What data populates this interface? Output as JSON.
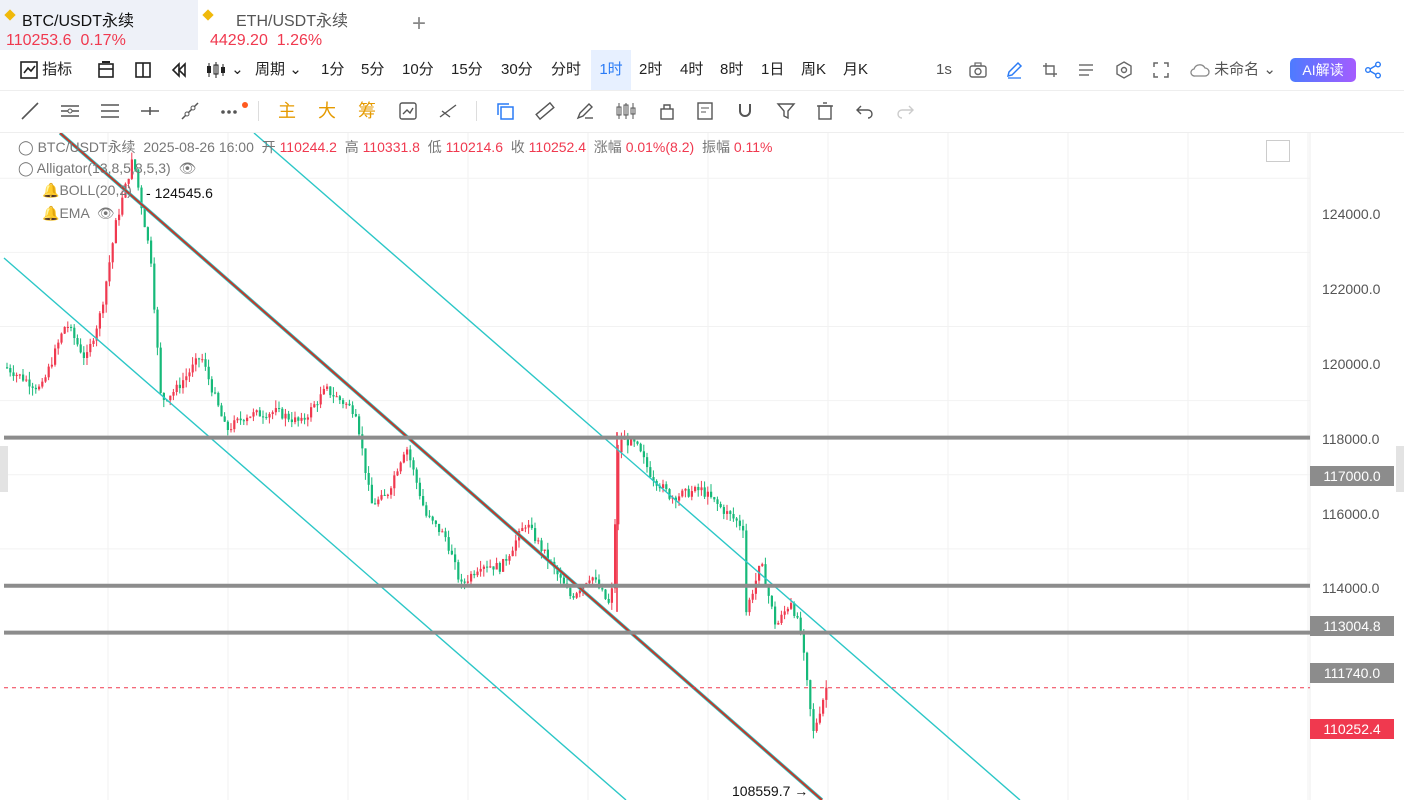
{
  "tabs": [
    {
      "name": "BTC/USDT永续",
      "price": "110253.6",
      "change": "0.17%"
    },
    {
      "name": "ETH/USDT永续",
      "price": "4429.20",
      "change": "1.26%"
    }
  ],
  "toolbar": {
    "indicators": "指标",
    "period": "周期",
    "intervals": [
      "1分",
      "5分",
      "10分",
      "15分",
      "30分",
      "分时",
      "1时",
      "2时",
      "4时",
      "8时",
      "1日",
      "周K",
      "月K"
    ],
    "selected_interval": "1时",
    "speed": "1s",
    "layout_name": "未命名",
    "ai_label": "AI解读"
  },
  "toolbar2": {
    "main": "主",
    "big": "大",
    "chip": "筹"
  },
  "legend": {
    "symbol": "BTC/USDT永续",
    "datetime": "2025-08-26 16:00",
    "open_label": "开",
    "open": "110244.2",
    "high_label": "高",
    "high": "110331.8",
    "low_label": "低",
    "low": "110214.6",
    "close_label": "收",
    "close": "110252.4",
    "chg_label": "涨幅",
    "chg": "0.01%(8.2)",
    "amp_label": "振幅",
    "amp": "0.11%",
    "alligator": "Alligator(13,8,5,8,5,3)",
    "boll": "BOLL(20,2)",
    "ema": "EMA"
  },
  "annotations": {
    "high": "124545.6",
    "low": "108559.7"
  },
  "price_axis": {
    "ticks": [
      "124000.0",
      "122000.0",
      "120000.0",
      "118000.0",
      "116000.0",
      "114000.0"
    ],
    "levels": [
      {
        "label": "117000.0",
        "value": 117000
      },
      {
        "label": "113004.8",
        "value": 113004.8
      },
      {
        "label": "111740.0",
        "value": 111740
      }
    ],
    "current": {
      "label": "110252.4",
      "value": 110252.4
    }
  },
  "colors": {
    "up": "#f0394f",
    "down": "#16b979",
    "channel": "#2cc7c7",
    "level": "#8c8c8c",
    "accent": "#2a7bf6"
  },
  "chart_data": {
    "type": "candlestick",
    "interval": "1时",
    "y_range": [
      107600,
      125600
    ],
    "high": 124545.6,
    "low": 108559.7,
    "close": 110252.4
  }
}
